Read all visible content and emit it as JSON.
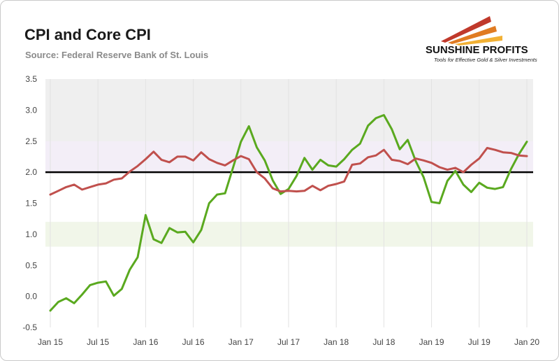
{
  "header": {
    "title": "CPI and Core CPI",
    "source": "Source: Federal Reserve Bank of St. Louis"
  },
  "logo": {
    "name": "SUNSHINE PROFITS",
    "tagline": "Tools for Effective Gold & Silver Investments",
    "colors": [
      "#c0392b",
      "#e07b22",
      "#f2b134"
    ]
  },
  "chart_data": {
    "type": "line",
    "ylim": [
      -0.5,
      3.5
    ],
    "yticks": [
      "-0.5",
      "0.0",
      "0.5",
      "1.0",
      "1.5",
      "2.0",
      "2.5",
      "3.0",
      "3.5"
    ],
    "xticks": [
      {
        "label": "Jan 15",
        "index": 0
      },
      {
        "label": "Jul 15",
        "index": 6
      },
      {
        "label": "Jan 16",
        "index": 12
      },
      {
        "label": "Jul 16",
        "index": 18
      },
      {
        "label": "Jan 17",
        "index": 24
      },
      {
        "label": "Jul 17",
        "index": 30
      },
      {
        "label": "Jan 18",
        "index": 36
      },
      {
        "label": "Jul 18",
        "index": 42
      },
      {
        "label": "Jan 19",
        "index": 48
      },
      {
        "label": "Jul 19",
        "index": 54
      },
      {
        "label": "Jan 20",
        "index": 60
      }
    ],
    "bands": [
      {
        "from": 2.0,
        "to": 3.5,
        "color": "#efefef"
      },
      {
        "from": 2.0,
        "to": 2.5,
        "color": "#f3eef7"
      },
      {
        "from": 0.8,
        "to": 1.2,
        "color": "#f1f6e9"
      }
    ],
    "reference_line": {
      "value": 2.0,
      "color": "#000000"
    },
    "series": [
      {
        "color": "#5aa91f",
        "values": [
          -0.23,
          -0.09,
          -0.03,
          -0.11,
          0.03,
          0.18,
          0.22,
          0.24,
          0.01,
          0.12,
          0.43,
          0.63,
          1.31,
          0.92,
          0.86,
          1.1,
          1.03,
          1.04,
          0.87,
          1.07,
          1.5,
          1.64,
          1.66,
          2.07,
          2.49,
          2.74,
          2.4,
          2.19,
          1.87,
          1.65,
          1.73,
          1.94,
          2.23,
          2.04,
          2.2,
          2.11,
          2.09,
          2.21,
          2.36,
          2.46,
          2.75,
          2.87,
          2.92,
          2.69,
          2.37,
          2.52,
          2.18,
          1.92,
          1.52,
          1.5,
          1.86,
          2.02,
          1.8,
          1.68,
          1.83,
          1.75,
          1.73,
          1.76,
          2.05,
          2.29,
          2.49
        ]
      },
      {
        "color": "#c0504d",
        "values": [
          1.64,
          1.7,
          1.76,
          1.8,
          1.72,
          1.76,
          1.8,
          1.82,
          1.88,
          1.9,
          2.01,
          2.1,
          2.21,
          2.33,
          2.2,
          2.16,
          2.25,
          2.25,
          2.19,
          2.32,
          2.21,
          2.15,
          2.11,
          2.19,
          2.26,
          2.21,
          2.0,
          1.9,
          1.74,
          1.69,
          1.7,
          1.69,
          1.7,
          1.78,
          1.71,
          1.78,
          1.81,
          1.85,
          2.12,
          2.14,
          2.24,
          2.27,
          2.36,
          2.2,
          2.18,
          2.13,
          2.22,
          2.19,
          2.15,
          2.08,
          2.04,
          2.07,
          2.0,
          2.12,
          2.22,
          2.39,
          2.36,
          2.32,
          2.31,
          2.27,
          2.26
        ]
      }
    ]
  }
}
